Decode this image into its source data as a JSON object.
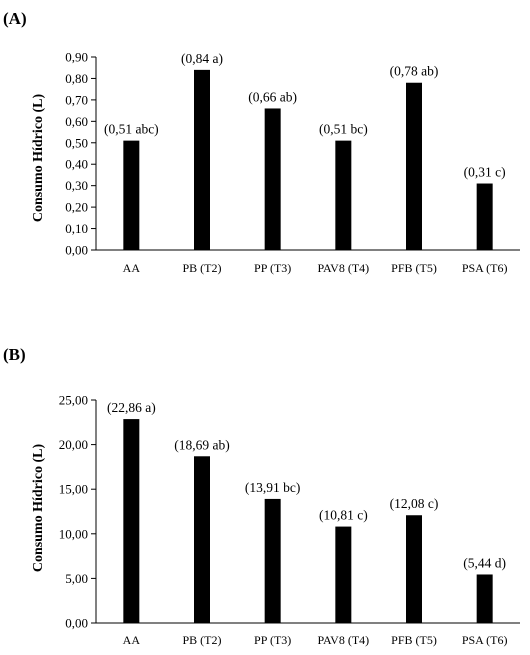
{
  "chart_data": [
    {
      "type": "bar",
      "panel_label": "(A)",
      "ylabel": "Consumo Hídrico (L)",
      "xlabel": "",
      "categories": [
        "AA",
        "PB (T2)",
        "PP (T3)",
        "PAV8 (T4)",
        "PFB (T5)",
        "PSA (T6)"
      ],
      "values": [
        0.51,
        0.84,
        0.66,
        0.51,
        0.78,
        0.31
      ],
      "data_labels": [
        "(0,51 abc)",
        "(0,84 a)",
        "(0,66 ab)",
        "(0,51 bc)",
        "(0,78 ab)",
        "(0,31 c)"
      ],
      "ylim": [
        0,
        0.9
      ],
      "yticks": [
        0,
        0.1,
        0.2,
        0.3,
        0.4,
        0.5,
        0.6,
        0.7,
        0.8,
        0.9
      ],
      "ytick_labels": [
        "0,00",
        "0,10",
        "0,20",
        "0,30",
        "0,40",
        "0,50",
        "0,60",
        "0,70",
        "0,80",
        "0,90"
      ],
      "bar_color": "#000000",
      "grid": false
    },
    {
      "type": "bar",
      "panel_label": "(B)",
      "ylabel": "Consumo Hídrico (L)",
      "xlabel": "",
      "categories": [
        "AA",
        "PB (T2)",
        "PP (T3)",
        "PAV8 (T4)",
        "PFB (T5)",
        "PSA (T6)"
      ],
      "values": [
        22.86,
        18.69,
        13.91,
        10.81,
        12.08,
        5.44
      ],
      "data_labels": [
        "(22,86 a)",
        "(18,69 ab)",
        "(13,91 bc)",
        "(10,81 c)",
        "(12,08 c)",
        "(5,44 d)"
      ],
      "ylim": [
        0,
        25
      ],
      "yticks": [
        0,
        5,
        10,
        15,
        20,
        25
      ],
      "ytick_labels": [
        "0,00",
        "5,00",
        "10,00",
        "15,00",
        "20,00",
        "25,00"
      ],
      "bar_color": "#000000",
      "grid": false
    }
  ]
}
